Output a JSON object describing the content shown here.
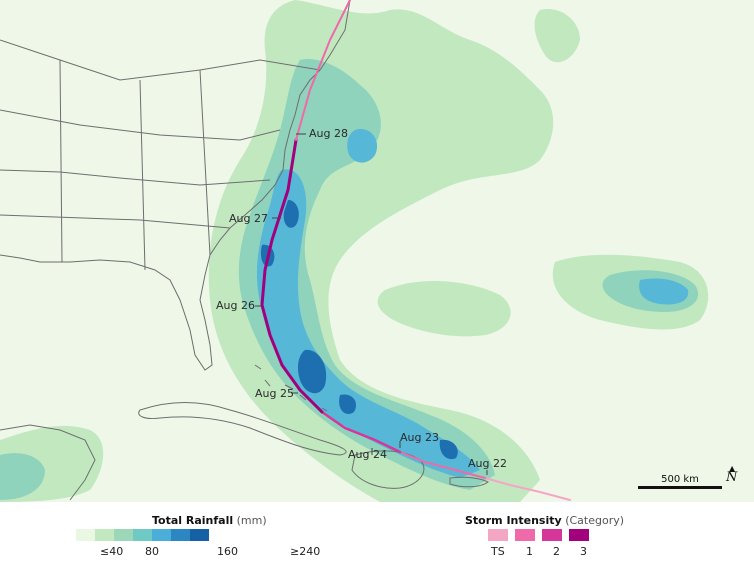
{
  "map": {
    "date_labels": [
      "Aug 28",
      "Aug 27",
      "Aug 26",
      "Aug 25",
      "Aug 24",
      "Aug 23",
      "Aug 22"
    ],
    "scale_label": "500 km",
    "north_label": "N",
    "colors": {
      "land_bg": "#eef7e8",
      "borders": "#6e6e6e",
      "track_ts": "#f4a7c5",
      "track_cat1": "#ee6aa8",
      "track_cat2": "#d6369a",
      "track_cat3": "#a3007e"
    }
  },
  "legend": {
    "rainfall": {
      "title": "Total Rainfall",
      "unit": "(mm)",
      "colors": [
        "#eaf7e3",
        "#c2e8c0",
        "#9cd8b8",
        "#6fc9c4",
        "#4aaed8",
        "#2b86c2",
        "#1660a6"
      ],
      "tick_labels": [
        "≤40",
        "80",
        "160",
        "≥240"
      ]
    },
    "intensity": {
      "title": "Storm Intensity",
      "unit": "(Category)",
      "colors": [
        "#f4a7c5",
        "#ee6aa8",
        "#d6369a",
        "#a3007e"
      ],
      "labels": [
        "TS",
        "1",
        "2",
        "3"
      ]
    }
  }
}
